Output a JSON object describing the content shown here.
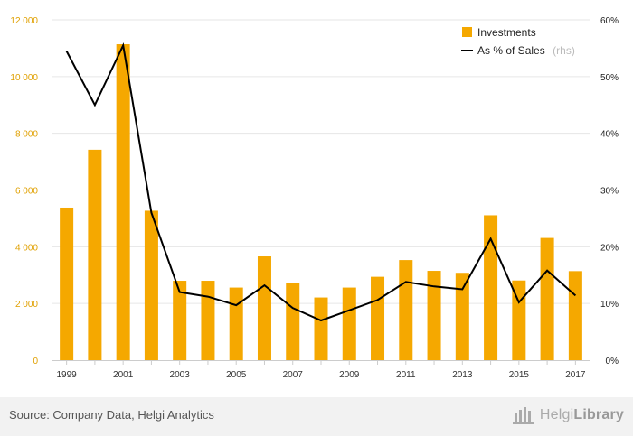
{
  "chart_data": {
    "type": "bar",
    "categories": [
      "1999",
      "2000",
      "2001",
      "2002",
      "2003",
      "2004",
      "2005",
      "2006",
      "2007",
      "2008",
      "2009",
      "2010",
      "2011",
      "2012",
      "2013",
      "2014",
      "2015",
      "2016",
      "2017"
    ],
    "x_tick_labels": [
      "1999",
      "2001",
      "2003",
      "2005",
      "2007",
      "2009",
      "2011",
      "2013",
      "2015",
      "2017"
    ],
    "series": [
      {
        "name": "Investments",
        "type": "bar",
        "axis": "left",
        "color": "#f5a800",
        "values": [
          5380,
          7420,
          11140,
          5270,
          2800,
          2800,
          2560,
          3660,
          2710,
          2210,
          2560,
          2940,
          3530,
          3150,
          3080,
          5110,
          2810,
          4310,
          3140
        ]
      },
      {
        "name": "As % of Sales",
        "name_suffix": "(rhs)",
        "type": "line",
        "axis": "right",
        "color": "#000000",
        "values": [
          54.5,
          45.0,
          55.5,
          26.0,
          12.0,
          11.2,
          9.7,
          13.2,
          9.2,
          7.0,
          8.8,
          10.6,
          13.8,
          13.0,
          12.5,
          21.4,
          10.2,
          15.8,
          11.4
        ]
      }
    ],
    "ylim_left": [
      0,
      12000
    ],
    "yticks_left": [
      "0",
      "2 000",
      "4 000",
      "6 000",
      "8 000",
      "10 000",
      "12 000"
    ],
    "ylim_right": [
      0,
      60
    ],
    "yticks_right": [
      "0%",
      "10%",
      "20%",
      "30%",
      "40%",
      "50%",
      "60%"
    ],
    "grid": true,
    "legend_position": "top-right"
  },
  "footer": {
    "source": "Source: Company Data, Helgi Analytics",
    "logo_light": "Helgi",
    "logo_bold": "Library"
  }
}
